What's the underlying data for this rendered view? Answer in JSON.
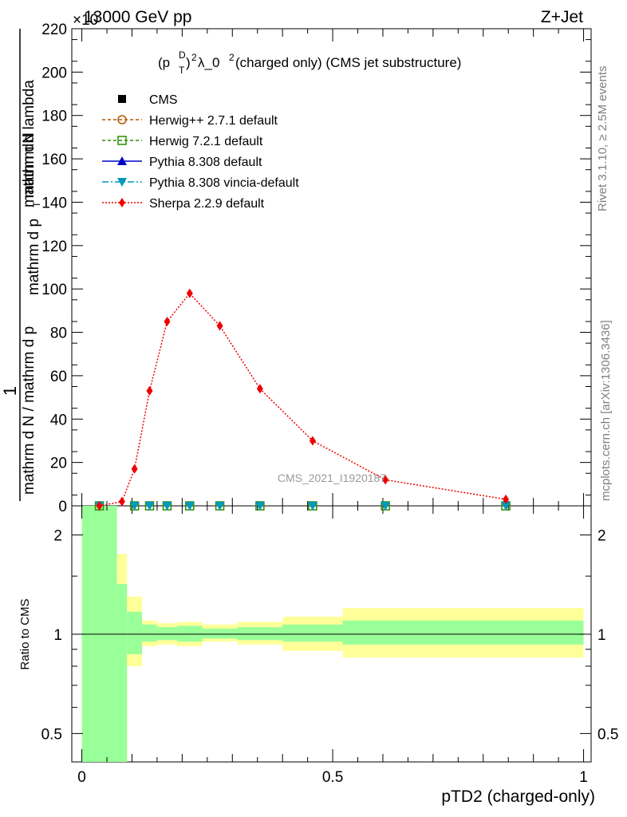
{
  "header": {
    "left": "13000 GeV pp",
    "right": "Z+Jet",
    "exponent": "×10"
  },
  "side_text": {
    "rivet": "Rivet 3.1.10, ≥ 2.5M events",
    "mcplots": "mcplots.cern.ch [arXiv:1306.3436]"
  },
  "watermark": "CMS_2021_I1920187",
  "chart_data": [
    {
      "type": "line",
      "title_parts": {
        "p": "(p",
        "sup_d": "D",
        "sub_t": "T",
        "close": ")",
        "sup_2": "2",
        "rest": " λ_0",
        "sup_2b": "2",
        "tail": " (charged only) (CMS jet substructure)"
      },
      "ylabel_top": "1",
      "ylabel_num": "mathrm dN",
      "ylabel_den_main": "mathrm d N / mathrm d p",
      "ylabel_num_main": "mathrm d p",
      "ylabel_num_t": "T",
      "ylabel_num_tail": " mathrm d lambda",
      "ylim": [
        0,
        220
      ],
      "yticks": [
        0,
        20,
        40,
        60,
        80,
        100,
        120,
        140,
        160,
        180,
        200,
        220
      ],
      "xlim": [
        0,
        1
      ],
      "legend_placement": "top-left",
      "series": [
        {
          "name": "CMS",
          "color": "#000000",
          "marker": "square"
        },
        {
          "name": "Herwig++ 2.7.1 default",
          "color": "#b35900",
          "marker": "open-circle",
          "dash": "dashed"
        },
        {
          "name": "Herwig 7.2.1 default",
          "color": "#2e8b00",
          "marker": "open-square",
          "dash": "dashed"
        },
        {
          "name": "Pythia 8.308 default",
          "color": "#0000cc",
          "marker": "triangle-up",
          "dash": "solid"
        },
        {
          "name": "Pythia 8.308 vincia-default",
          "color": "#0099bb",
          "marker": "triangle-down",
          "dash": "dashdot"
        },
        {
          "name": "Sherpa 2.2.9 default",
          "color": "#ee0000",
          "marker": "diamond",
          "dash": "dotted",
          "x": [
            0.035,
            0.08,
            0.105,
            0.135,
            0.17,
            0.215,
            0.275,
            0.355,
            0.46,
            0.605,
            0.845
          ],
          "y": [
            0,
            2,
            17,
            53,
            85,
            98,
            83,
            54,
            30,
            12,
            3
          ]
        }
      ],
      "flat_points_x": [
        0.035,
        0.105,
        0.135,
        0.17,
        0.215,
        0.275,
        0.355,
        0.46,
        0.605,
        0.845
      ]
    },
    {
      "type": "area",
      "ylabel": "Ratio to CMS",
      "xlabel": "pTD2 (charged-only)",
      "xticks": [
        "0",
        "0.5",
        "1"
      ],
      "xtick_values": [
        0,
        0.5,
        1
      ],
      "yticks": [
        "0.5",
        "1",
        "2"
      ],
      "ytick_values": [
        0.5,
        1,
        2
      ],
      "ylim": [
        0.41,
        2.45
      ],
      "log_scale": true,
      "band_colors": {
        "inner": "#99ff99",
        "outer": "#ffff99"
      },
      "bins": [
        {
          "x0": 0.0,
          "x1": 0.07,
          "g": [
            0.0,
            3.0
          ],
          "y": [
            0.0,
            3.0
          ]
        },
        {
          "x0": 0.07,
          "x1": 0.09,
          "g": [
            0.0,
            1.42
          ],
          "y": [
            0.0,
            1.75
          ]
        },
        {
          "x0": 0.09,
          "x1": 0.12,
          "g": [
            0.87,
            1.17
          ],
          "y": [
            0.8,
            1.3
          ]
        },
        {
          "x0": 0.12,
          "x1": 0.15,
          "g": [
            0.95,
            1.07
          ],
          "y": [
            0.92,
            1.1
          ]
        },
        {
          "x0": 0.15,
          "x1": 0.19,
          "g": [
            0.96,
            1.05
          ],
          "y": [
            0.93,
            1.08
          ]
        },
        {
          "x0": 0.19,
          "x1": 0.24,
          "g": [
            0.95,
            1.06
          ],
          "y": [
            0.92,
            1.09
          ]
        },
        {
          "x0": 0.24,
          "x1": 0.31,
          "g": [
            0.97,
            1.04
          ],
          "y": [
            0.95,
            1.07
          ]
        },
        {
          "x0": 0.31,
          "x1": 0.4,
          "g": [
            0.96,
            1.05
          ],
          "y": [
            0.93,
            1.09
          ]
        },
        {
          "x0": 0.4,
          "x1": 0.52,
          "g": [
            0.95,
            1.07
          ],
          "y": [
            0.89,
            1.13
          ]
        },
        {
          "x0": 0.52,
          "x1": 1.0,
          "g": [
            0.93,
            1.1
          ],
          "y": [
            0.85,
            1.2
          ]
        }
      ]
    }
  ]
}
